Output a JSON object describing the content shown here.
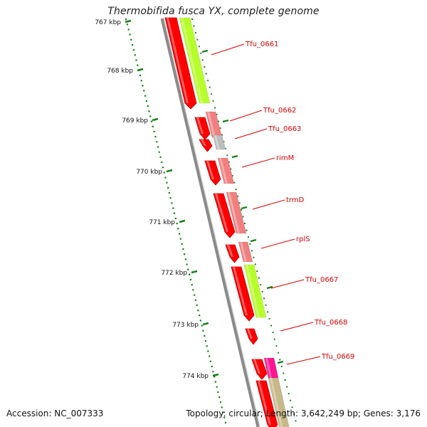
{
  "title": "Thermobifida fusca YX, complete genome",
  "accession": "Accession: NC_007333",
  "summary": "Topology: circular; Length: 3,642,249 bp; Genes: 3,176",
  "scale_ticks": [
    "767 kbp",
    "768 kbp",
    "769 kbp",
    "770 kbp",
    "771 kbp",
    "772 kbp",
    "773 kbp",
    "774 kbp"
  ],
  "genes": [
    {
      "label": "Tfu_0661",
      "color": "#b7ff2a"
    },
    {
      "label": "Tfu_0662",
      "color": "#f08080"
    },
    {
      "label": "Tfu_0663",
      "color": "#bdbdbd"
    },
    {
      "label": "rimM",
      "color": "#f08080"
    },
    {
      "label": "trmD",
      "color": "#f08080"
    },
    {
      "label": "rplS",
      "color": "#f08080"
    },
    {
      "label": "Tfu_0667",
      "color": "#b7ff2a"
    },
    {
      "label": "Tfu_0668",
      "color": "#ff0000"
    },
    {
      "label": "Tfu_0669",
      "color": "#ff1493"
    }
  ],
  "colors": {
    "backbone": "#8a8a8a",
    "strand_red": "#ff0000",
    "tick_green": "#1a7f1a",
    "label_red": "#d60000",
    "olive_block": "#c8b98a"
  }
}
